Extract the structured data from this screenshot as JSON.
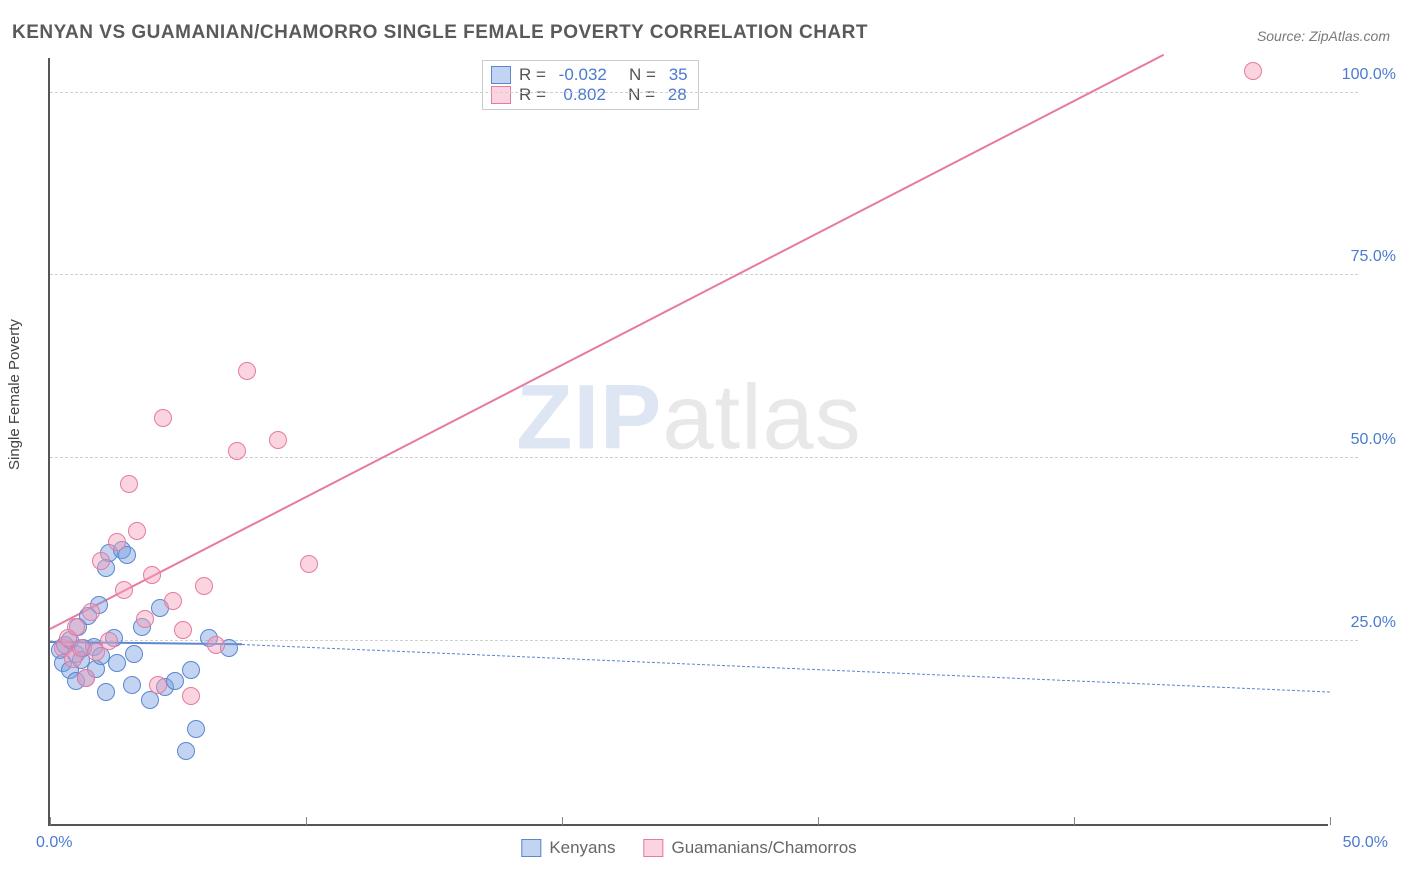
{
  "title": "KENYAN VS GUAMANIAN/CHAMORRO SINGLE FEMALE POVERTY CORRELATION CHART",
  "source": "Source: ZipAtlas.com",
  "ylabel": "Single Female Poverty",
  "watermark_zip": "ZIP",
  "watermark_rest": "atlas",
  "chart": {
    "type": "scatter",
    "xlim": [
      0,
      50
    ],
    "ylim": [
      0,
      105
    ],
    "x_ticks": [
      0,
      10,
      20,
      30,
      40,
      50
    ],
    "x_tick_labels": {
      "0": "0.0%",
      "50": "50.0%"
    },
    "y_gridlines": [
      25,
      50,
      75,
      100
    ],
    "y_grid_labels": {
      "25": "25.0%",
      "50": "50.0%",
      "75": "75.0%",
      "100": "100.0%"
    },
    "background_color": "#ffffff",
    "grid_color": "#d0d0d0",
    "axis_color": "#555555",
    "point_radius": 9,
    "point_stroke_width": 1.6,
    "series": [
      {
        "name": "Kenyans",
        "color_fill": "rgba(120,160,225,0.45)",
        "color_stroke": "#5a87cf",
        "R": "-0.032",
        "N": "35",
        "reg_line": {
          "x1": 0,
          "y1": 24.8,
          "x2": 7.5,
          "y2": 24.5,
          "x2_dash": 50,
          "y2_dash": 18.0,
          "width": 2.4,
          "dash": "6,5"
        },
        "points": [
          [
            0.4,
            23.8
          ],
          [
            0.5,
            22.0
          ],
          [
            0.6,
            24.5
          ],
          [
            0.8,
            21.0
          ],
          [
            0.8,
            25.2
          ],
          [
            1.0,
            23.2
          ],
          [
            1.0,
            19.5
          ],
          [
            1.1,
            27.0
          ],
          [
            1.2,
            22.4
          ],
          [
            1.3,
            24.0
          ],
          [
            1.4,
            20.0
          ],
          [
            1.5,
            28.5
          ],
          [
            1.7,
            24.2
          ],
          [
            1.8,
            21.2
          ],
          [
            1.9,
            30.0
          ],
          [
            2.0,
            23.0
          ],
          [
            2.2,
            18.0
          ],
          [
            2.2,
            35.0
          ],
          [
            2.3,
            37.0
          ],
          [
            2.5,
            25.5
          ],
          [
            2.6,
            22.0
          ],
          [
            2.8,
            37.5
          ],
          [
            3.0,
            36.8
          ],
          [
            3.2,
            19.0
          ],
          [
            3.3,
            23.3
          ],
          [
            3.6,
            27.0
          ],
          [
            3.9,
            17.0
          ],
          [
            4.3,
            29.5
          ],
          [
            4.5,
            18.8
          ],
          [
            4.9,
            19.5
          ],
          [
            5.3,
            10.0
          ],
          [
            5.5,
            21.0
          ],
          [
            5.7,
            13.0
          ],
          [
            6.2,
            25.5
          ],
          [
            7.0,
            24.0
          ]
        ]
      },
      {
        "name": "Guamanians/Chamorros",
        "color_fill": "rgba(245,160,185,0.45)",
        "color_stroke": "#e77aa0",
        "R": "0.802",
        "N": "28",
        "reg_line": {
          "x1": 0,
          "y1": 26.5,
          "x2": 43.5,
          "y2": 105,
          "width": 2.6
        },
        "points": [
          [
            0.5,
            24.0
          ],
          [
            0.7,
            25.5
          ],
          [
            0.9,
            22.5
          ],
          [
            1.0,
            27.0
          ],
          [
            1.2,
            24.0
          ],
          [
            1.4,
            20.0
          ],
          [
            1.6,
            29.0
          ],
          [
            1.8,
            23.5
          ],
          [
            2.0,
            36.0
          ],
          [
            2.3,
            25.0
          ],
          [
            2.6,
            38.5
          ],
          [
            2.9,
            32.0
          ],
          [
            3.1,
            46.5
          ],
          [
            3.4,
            40.0
          ],
          [
            3.7,
            28.0
          ],
          [
            4.0,
            34.0
          ],
          [
            4.2,
            19.0
          ],
          [
            4.4,
            55.5
          ],
          [
            4.8,
            30.5
          ],
          [
            5.2,
            26.5
          ],
          [
            5.5,
            17.5
          ],
          [
            6.0,
            32.5
          ],
          [
            6.5,
            24.5
          ],
          [
            7.3,
            51.0
          ],
          [
            7.7,
            62.0
          ],
          [
            8.9,
            52.5
          ],
          [
            10.1,
            35.5
          ],
          [
            47.0,
            103.0
          ]
        ]
      }
    ]
  }
}
